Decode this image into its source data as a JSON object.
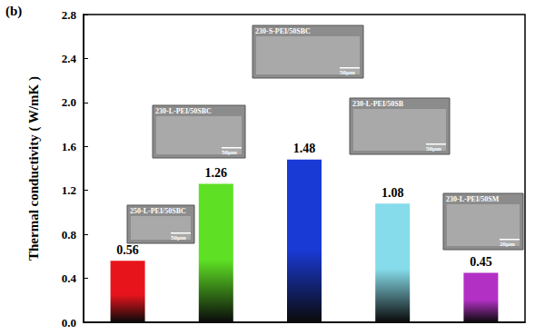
{
  "chart_data": {
    "type": "bar",
    "panel_label": "(b)",
    "y_label": "Thermal conductivity ( W/mK )",
    "categories": [
      null,
      null,
      null,
      null,
      null
    ],
    "values": [
      0.56,
      1.26,
      1.48,
      1.08,
      0.45
    ],
    "colors": [
      "#e8141c",
      "#5ee024",
      "#1a3ad6",
      "#86dcea",
      "#b230c4"
    ],
    "ylim": [
      0,
      2.8
    ],
    "yticks": [
      {
        "value": 0,
        "label": "0.0"
      },
      {
        "value": 0.4,
        "label": "0.4"
      },
      {
        "value": 0.8,
        "label": "0.8"
      },
      {
        "value": 1.2,
        "label": "1.2"
      },
      {
        "value": 1.6,
        "label": "1.6"
      },
      {
        "value": 2.0,
        "label": "2.0"
      },
      {
        "value": 2.4,
        "label": "2.4"
      },
      {
        "value": 2.8,
        "label": "2.8"
      }
    ],
    "data_labels": true,
    "tick_labels": "y",
    "grid": false,
    "annotations": [
      {
        "text": "250-L-PEI/50SBC",
        "scale_bar": "50μm"
      },
      {
        "text": "230-L-PEI/50SBC",
        "scale_bar": "50μm"
      },
      {
        "text": "230-S-PEI/50SBC",
        "scale_bar": "50μm"
      },
      {
        "text": "230-L-PEI/50SB",
        "scale_bar": "50μm"
      },
      {
        "text": "230-L-PEI/50SM",
        "scale_bar": "20μm"
      }
    ]
  }
}
